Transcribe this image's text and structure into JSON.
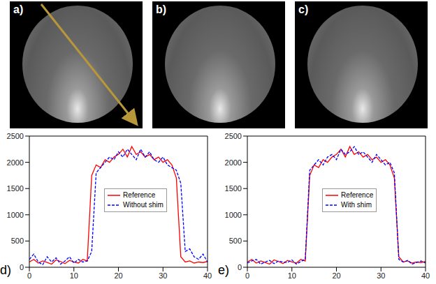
{
  "images": [
    {
      "label": "a)"
    },
    {
      "label": "b)"
    },
    {
      "label": "c)"
    }
  ],
  "chart_data": [
    {
      "type": "line",
      "annotations": [
        "d)"
      ],
      "x": [
        0,
        1,
        2,
        3,
        4,
        5,
        6,
        7,
        8,
        9,
        10,
        11,
        12,
        13,
        14,
        15,
        16,
        17,
        18,
        19,
        20,
        21,
        22,
        23,
        24,
        25,
        26,
        27,
        28,
        29,
        30,
        31,
        32,
        33,
        34,
        35,
        36,
        37,
        38,
        39,
        40
      ],
      "series": [
        {
          "name": "Reference",
          "color": "#ff0000",
          "line_style": "solid",
          "marker": "none",
          "values": [
            100,
            150,
            80,
            120,
            90,
            60,
            140,
            110,
            70,
            130,
            100,
            80,
            150,
            120,
            1750,
            1950,
            1900,
            2050,
            2000,
            2100,
            2150,
            2250,
            2100,
            2300,
            2150,
            2200,
            2100,
            2150,
            2050,
            2100,
            2000,
            2050,
            1950,
            1700,
            200,
            100,
            120,
            80,
            100,
            90,
            110
          ]
        },
        {
          "name": "Without shim",
          "color": "#0000ff",
          "line_style": "dashed",
          "marker": "none",
          "values": [
            150,
            250,
            100,
            50,
            200,
            100,
            180,
            60,
            120,
            200,
            80,
            150,
            100,
            120,
            300,
            1800,
            1900,
            2000,
            2100,
            2050,
            2200,
            2100,
            2250,
            2150,
            2050,
            2250,
            2100,
            2200,
            2050,
            2000,
            2100,
            1950,
            1900,
            1850,
            1600,
            300,
            350,
            200,
            150,
            250,
            100
          ]
        }
      ],
      "xlim": [
        0,
        40
      ],
      "xticks": [
        0,
        10,
        20,
        30,
        40
      ],
      "ylim": [
        0,
        2500
      ],
      "yticks": [
        0,
        500,
        1000,
        1500,
        2000,
        2500
      ],
      "grid": false,
      "legend": "lower center"
    },
    {
      "type": "line",
      "annotations": [
        "e)"
      ],
      "x": [
        0,
        1,
        2,
        3,
        4,
        5,
        6,
        7,
        8,
        9,
        10,
        11,
        12,
        13,
        14,
        15,
        16,
        17,
        18,
        19,
        20,
        21,
        22,
        23,
        24,
        25,
        26,
        27,
        28,
        29,
        30,
        31,
        32,
        33,
        34,
        35,
        36,
        37,
        38,
        39,
        40
      ],
      "series": [
        {
          "name": "Reference",
          "color": "#ff0000",
          "line_style": "solid",
          "marker": "none",
          "values": [
            100,
            150,
            80,
            120,
            90,
            60,
            140,
            110,
            70,
            130,
            100,
            80,
            150,
            120,
            1750,
            1950,
            1900,
            2050,
            2000,
            2100,
            2150,
            2250,
            2100,
            2300,
            2150,
            2200,
            2100,
            2150,
            2050,
            2100,
            2000,
            2050,
            1950,
            1700,
            200,
            100,
            120,
            80,
            100,
            90,
            110
          ]
        },
        {
          "name": "With shim",
          "color": "#0000ff",
          "line_style": "dashed",
          "marker": "none",
          "values": [
            80,
            120,
            150,
            60,
            100,
            130,
            70,
            120,
            100,
            90,
            140,
            60,
            110,
            150,
            1850,
            1950,
            2050,
            1950,
            2100,
            2150,
            2050,
            2250,
            2150,
            2200,
            2300,
            2150,
            2200,
            2100,
            2000,
            2150,
            2050,
            1950,
            2000,
            1800,
            150,
            100,
            130,
            60,
            90,
            120,
            80
          ]
        }
      ],
      "xlim": [
        0,
        40
      ],
      "xticks": [
        0,
        10,
        20,
        30,
        40
      ],
      "ylim": [
        0,
        2500
      ],
      "yticks": [
        0,
        500,
        1000,
        1500,
        2000,
        2500
      ],
      "grid": false,
      "legend": "lower center"
    }
  ]
}
